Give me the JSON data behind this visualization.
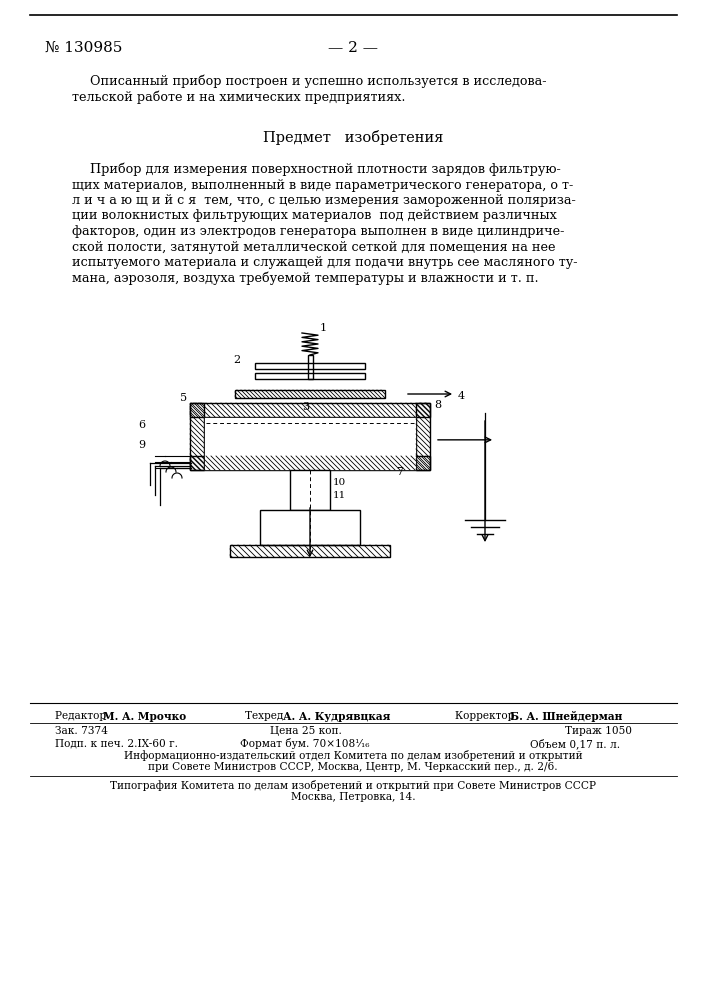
{
  "bg_color": "#ffffff",
  "patent_number": "№ 130985",
  "page_number": "— 2 —",
  "heading": "Предмет   изобретения"
}
